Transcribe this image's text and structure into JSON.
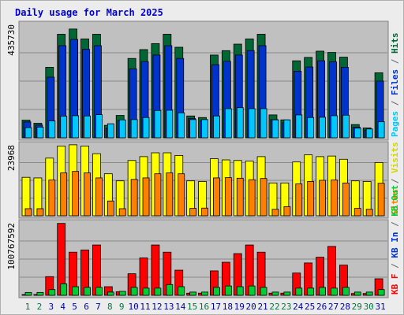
{
  "colors": {
    "background": "#ececec",
    "panel": "#c0c0c0",
    "title": "#0000cc",
    "hits": "#006633",
    "files": "#0033cc",
    "pages": "#00c8ff",
    "visits": "#ffff00",
    "sites": "#ff8000",
    "kb_in": "#ff0000",
    "kb_out": "#00cc33",
    "weekday_label": "#0000aa",
    "weekend_label": "#007744"
  },
  "chart_data": {
    "title": "Daily usage for March 2025",
    "type": "bar",
    "categories": [
      "1",
      "2",
      "3",
      "4",
      "5",
      "6",
      "7",
      "8",
      "9",
      "10",
      "11",
      "12",
      "13",
      "14",
      "15",
      "16",
      "17",
      "18",
      "19",
      "20",
      "21",
      "22",
      "23",
      "24",
      "25",
      "26",
      "27",
      "28",
      "29",
      "30",
      "31"
    ],
    "weekend_days": [
      "1",
      "2",
      "8",
      "9",
      "15",
      "16",
      "22",
      "23",
      "29",
      "30"
    ],
    "panels": [
      {
        "id": "usage",
        "ymax_label": "435730",
        "ylim": [
          0,
          435730
        ],
        "side_labels": [
          {
            "text": "Pages",
            "color": "#00c8ff"
          },
          {
            "text": " / ",
            "color": "#666666"
          },
          {
            "text": "Files",
            "color": "#0033cc"
          },
          {
            "text": " / ",
            "color": "#666666"
          },
          {
            "text": "Hits",
            "color": "#006633"
          }
        ],
        "series": [
          {
            "name": "Hits",
            "color": "#006633",
            "values": [
              68000,
              56000,
              271000,
              398000,
              418000,
              380000,
              398000,
              48000,
              86000,
              305000,
              339000,
              362000,
              398000,
              348000,
              84000,
              78000,
              318000,
              335000,
              360000,
              380000,
              398000,
              88000,
              69000,
              296000,
              309000,
              333000,
              328000,
              310000,
              51000,
              38000,
              250000
            ]
          },
          {
            "name": "Files",
            "color": "#0033cc",
            "values": [
              61000,
              49000,
              233000,
              354000,
              378000,
              340000,
              354000,
              37000,
              67000,
              265000,
              293000,
              318000,
              354000,
              305000,
              74000,
              66000,
              281000,
              294000,
              318000,
              335000,
              354000,
              70000,
              58000,
              256000,
              272000,
              296000,
              292000,
              271000,
              41000,
              30000,
              218000
            ]
          },
          {
            "name": "Pages",
            "color": "#00c8ff",
            "values": [
              39000,
              41000,
              65000,
              83000,
              85000,
              84000,
              89000,
              54000,
              69000,
              70000,
              78000,
              105000,
              106000,
              96000,
              70000,
              70000,
              84000,
              112000,
              116000,
              112000,
              112000,
              69000,
              69000,
              88000,
              78000,
              79000,
              85000,
              87000,
              37000,
              34000,
              62000
            ]
          }
        ]
      },
      {
        "id": "visitors",
        "ymax_label": "23968",
        "ylim": [
          0,
          23968
        ],
        "side_labels": [
          {
            "text": "Sites",
            "color": "#ff8000"
          },
          {
            "text": " / ",
            "color": "#666666"
          },
          {
            "text": "Visits",
            "color": "#d4d400"
          }
        ],
        "series": [
          {
            "name": "Visits",
            "color": "#ffff00",
            "values": [
              13000,
              12800,
              19500,
              23600,
              24000,
              23600,
              21000,
              14200,
              11800,
              18700,
              20000,
              21300,
              21300,
              20400,
              11800,
              11600,
              19300,
              18900,
              18700,
              18500,
              20000,
              11100,
              11100,
              18200,
              20600,
              20000,
              20200,
              19100,
              11800,
              11600,
              18000
            ]
          },
          {
            "name": "Sites",
            "color": "#ff8000",
            "values": [
              2400,
              2400,
              12100,
              14500,
              15000,
              14500,
              12800,
              5000,
              2400,
              12300,
              12800,
              14200,
              14500,
              14200,
              2500,
              2600,
              12800,
              12900,
              12700,
              12200,
              12600,
              2200,
              3100,
              10800,
              11600,
              12000,
              12100,
              11100,
              2500,
              2200,
              11000
            ]
          }
        ]
      },
      {
        "id": "traffic",
        "ymax_label": "100767592",
        "ylim": [
          0,
          100767592
        ],
        "side_labels": [
          {
            "text": "KB F",
            "color": "#ff0000"
          },
          {
            "text": " / ",
            "color": "#666666"
          },
          {
            "text": "KB In",
            "color": "#0033cc"
          },
          {
            "text": " / ",
            "color": "#666666"
          },
          {
            "text": "KB Out",
            "color": "#00cc33"
          }
        ],
        "series": [
          {
            "name": "KB F",
            "color": "#ff0000",
            "values": [
              1000000,
              1000000,
              26000000,
              100000000,
              60000000,
              63000000,
              70000000,
              12000000,
              5000000,
              30000000,
              52000000,
              70000000,
              60000000,
              35000000,
              3000000,
              3000000,
              34000000,
              46000000,
              58000000,
              70000000,
              60000000,
              3000000,
              3000000,
              31000000,
              45000000,
              53000000,
              68000000,
              42000000,
              2500000,
              2500000,
              23000000
            ]
          },
          {
            "name": "KB Out",
            "color": "#00cc33",
            "values": [
              4000000,
              4000000,
              8000000,
              16000000,
              12000000,
              11000000,
              11000000,
              4500000,
              5500000,
              11000000,
              10000000,
              10000000,
              15000000,
              12000000,
              4500000,
              4500000,
              11000000,
              13000000,
              12000000,
              13000000,
              11000000,
              4500000,
              4500000,
              10000000,
              10000000,
              11000000,
              10000000,
              11000000,
              4500000,
              4500000,
              8000000
            ]
          }
        ]
      }
    ]
  }
}
